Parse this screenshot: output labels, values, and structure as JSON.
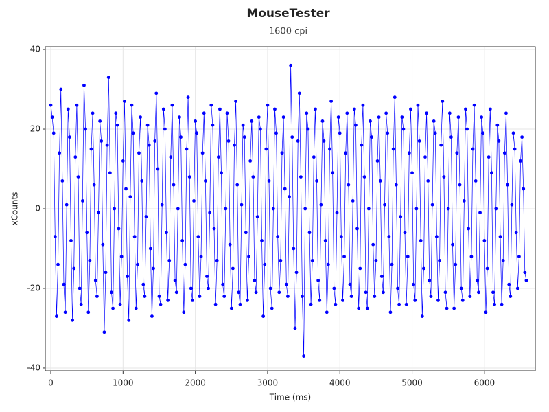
{
  "chart_data": {
    "type": "scatter_line",
    "title": "MouseTester",
    "subtitle": "1600 cpi",
    "x_label": "Time (ms)",
    "y_label": "xCounts",
    "color": "#0000ff",
    "grid": true,
    "xlim": [
      -76,
      6704
    ],
    "ylim": [
      -40.7,
      40.7
    ],
    "xticks": [
      0,
      1000,
      2000,
      3000,
      4000,
      5000,
      6000
    ],
    "yticks": [
      -40,
      -20,
      0,
      20,
      40
    ],
    "x": [
      0,
      20,
      40,
      60,
      80,
      100,
      120,
      140,
      160,
      180,
      200,
      220,
      240,
      260,
      280,
      300,
      320,
      340,
      360,
      380,
      400,
      420,
      440,
      460,
      480,
      500,
      520,
      540,
      560,
      580,
      600,
      620,
      640,
      660,
      680,
      700,
      720,
      740,
      760,
      780,
      800,
      820,
      840,
      860,
      880,
      900,
      920,
      940,
      960,
      980,
      1000,
      1020,
      1040,
      1060,
      1080,
      1100,
      1120,
      1140,
      1160,
      1180,
      1200,
      1220,
      1240,
      1260,
      1280,
      1300,
      1320,
      1340,
      1360,
      1380,
      1400,
      1420,
      1440,
      1460,
      1480,
      1500,
      1520,
      1540,
      1560,
      1580,
      1600,
      1620,
      1640,
      1660,
      1680,
      1700,
      1720,
      1740,
      1760,
      1780,
      1800,
      1820,
      1840,
      1860,
      1880,
      1900,
      1920,
      1940,
      1960,
      1980,
      2000,
      2020,
      2040,
      2060,
      2080,
      2100,
      2120,
      2140,
      2160,
      2180,
      2200,
      2220,
      2240,
      2260,
      2280,
      2300,
      2320,
      2340,
      2360,
      2380,
      2400,
      2420,
      2440,
      2460,
      2480,
      2500,
      2520,
      2540,
      2560,
      2580,
      2600,
      2620,
      2640,
      2660,
      2680,
      2700,
      2720,
      2740,
      2760,
      2780,
      2800,
      2820,
      2840,
      2860,
      2880,
      2900,
      2920,
      2940,
      2960,
      2980,
      3000,
      3020,
      3040,
      3060,
      3080,
      3100,
      3120,
      3140,
      3160,
      3180,
      3200,
      3220,
      3240,
      3260,
      3280,
      3300,
      3320,
      3340,
      3360,
      3380,
      3400,
      3420,
      3440,
      3460,
      3480,
      3500,
      3520,
      3540,
      3560,
      3580,
      3600,
      3620,
      3640,
      3660,
      3680,
      3700,
      3720,
      3740,
      3760,
      3780,
      3800,
      3820,
      3840,
      3860,
      3880,
      3900,
      3920,
      3940,
      3960,
      3980,
      4000,
      4020,
      4040,
      4060,
      4080,
      4100,
      4120,
      4140,
      4160,
      4180,
      4200,
      4220,
      4240,
      4260,
      4280,
      4300,
      4320,
      4340,
      4360,
      4380,
      4400,
      4420,
      4440,
      4460,
      4480,
      4500,
      4520,
      4540,
      4560,
      4580,
      4600,
      4620,
      4640,
      4660,
      4680,
      4700,
      4720,
      4740,
      4760,
      4780,
      4800,
      4820,
      4840,
      4860,
      4880,
      4900,
      4920,
      4940,
      4960,
      4980,
      5000,
      5020,
      5040,
      5060,
      5080,
      5100,
      5120,
      5140,
      5160,
      5180,
      5200,
      5220,
      5240,
      5260,
      5280,
      5300,
      5320,
      5340,
      5360,
      5380,
      5400,
      5420,
      5440,
      5460,
      5480,
      5500,
      5520,
      5540,
      5560,
      5580,
      5600,
      5620,
      5640,
      5660,
      5680,
      5700,
      5720,
      5740,
      5760,
      5780,
      5800,
      5820,
      5840,
      5860,
      5880,
      5900,
      5920,
      5940,
      5960,
      5980,
      6000,
      6020,
      6040,
      6060,
      6080,
      6100,
      6120,
      6140,
      6160,
      6180,
      6200,
      6220,
      6240,
      6260,
      6280,
      6300,
      6320,
      6340,
      6360,
      6380,
      6400,
      6420,
      6440,
      6460,
      6480,
      6500,
      6520,
      6540,
      6560,
      6580
    ],
    "values": [
      26,
      23,
      19,
      -7,
      -27,
      -14,
      14,
      30,
      7,
      -19,
      -26,
      1,
      25,
      18,
      -8,
      -28,
      -15,
      13,
      26,
      8,
      -20,
      -24,
      2,
      31,
      20,
      -6,
      -26,
      -13,
      15,
      24,
      6,
      -18,
      -22,
      -1,
      22,
      17,
      -9,
      -31,
      -16,
      16,
      33,
      9,
      -21,
      -25,
      0,
      24,
      21,
      -5,
      -24,
      -12,
      12,
      27,
      5,
      -17,
      -28,
      3,
      26,
      19,
      -7,
      -25,
      -14,
      14,
      23,
      7,
      -19,
      -22,
      -2,
      21,
      16,
      -10,
      -27,
      -15,
      17,
      29,
      10,
      -22,
      -24,
      1,
      25,
      20,
      -6,
      -23,
      -13,
      13,
      26,
      6,
      -18,
      -21,
      0,
      23,
      18,
      -8,
      -26,
      -14,
      15,
      28,
      8,
      -20,
      -23,
      2,
      22,
      19,
      -7,
      -22,
      -12,
      14,
      24,
      7,
      -17,
      -20,
      -1,
      26,
      21,
      -5,
      -24,
      -13,
      13,
      25,
      9,
      -19,
      -22,
      0,
      24,
      17,
      -9,
      -25,
      -15,
      16,
      27,
      6,
      -21,
      -24,
      1,
      21,
      18,
      -6,
      -23,
      -12,
      12,
      22,
      8,
      -18,
      -21,
      -2,
      23,
      20,
      -8,
      -27,
      -14,
      15,
      26,
      7,
      -20,
      -25,
      0,
      25,
      19,
      -7,
      -21,
      -13,
      14,
      23,
      5,
      -19,
      -22,
      3,
      36,
      18,
      -10,
      -30,
      -16,
      17,
      29,
      8,
      -22,
      -37,
      0,
      24,
      20,
      -6,
      -24,
      -13,
      13,
      25,
      7,
      -18,
      -23,
      1,
      22,
      17,
      -8,
      -26,
      -14,
      15,
      27,
      9,
      -20,
      -24,
      -1,
      23,
      19,
      -7,
      -23,
      -12,
      14,
      24,
      6,
      -19,
      -22,
      2,
      25,
      21,
      -5,
      -25,
      -15,
      16,
      26,
      8,
      -21,
      -25,
      0,
      22,
      18,
      -9,
      -22,
      -13,
      12,
      23,
      7,
      -17,
      -21,
      1,
      24,
      19,
      -7,
      -26,
      -14,
      15,
      28,
      6,
      -20,
      -24,
      -2,
      23,
      20,
      -6,
      -24,
      -12,
      14,
      25,
      9,
      -19,
      -23,
      0,
      26,
      17,
      -8,
      -27,
      -15,
      13,
      24,
      7,
      -18,
      -22,
      1,
      22,
      19,
      -7,
      -23,
      -13,
      16,
      27,
      8,
      -21,
      -25,
      0,
      24,
      18,
      -9,
      -25,
      -14,
      14,
      23,
      6,
      -20,
      -23,
      2,
      25,
      20,
      -5,
      -22,
      -12,
      15,
      26,
      7,
      -18,
      -21,
      -1,
      23,
      19,
      -8,
      -26,
      -15,
      13,
      25,
      9,
      -21,
      -24,
      0,
      21,
      17,
      -7,
      -24,
      -13,
      14,
      24,
      6,
      -19,
      -22,
      1,
      19,
      15,
      -6,
      -20,
      -12,
      12,
      18,
      5,
      -16,
      -18
    ]
  }
}
